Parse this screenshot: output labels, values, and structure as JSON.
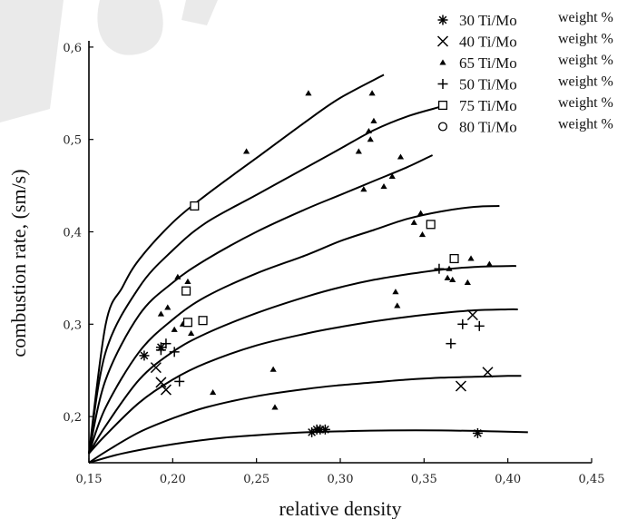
{
  "chart_data": {
    "type": "scatter",
    "title": "",
    "xlabel": "relative density",
    "ylabel": "combustion rate, (sm/s)",
    "xlim": [
      0.15,
      0.45
    ],
    "ylim": [
      0.15,
      0.65
    ],
    "x_ticks": [
      "0,15",
      "0,20",
      "0,25",
      "0,30",
      "0,35",
      "0,40",
      "0,45"
    ],
    "y_ticks": [
      "0,2",
      "0,3",
      "0,4",
      "0,5",
      "0,6"
    ],
    "x_tick_values": [
      0.15,
      0.2,
      0.25,
      0.3,
      0.35,
      0.4,
      0.45
    ],
    "y_tick_values": [
      0.2,
      0.3,
      0.4,
      0.5,
      0.6
    ],
    "grid": false,
    "legend_position": "top-right",
    "legend_unit": "weight %",
    "series": [
      {
        "name": "30 Ti/Mo",
        "marker": "asterisk",
        "x": [
          0.183,
          0.193,
          0.283,
          0.286,
          0.288,
          0.291,
          0.382
        ],
        "y": [
          0.266,
          0.275,
          0.183,
          0.186,
          0.186,
          0.186,
          0.182
        ]
      },
      {
        "name": "40 Ti/Mo",
        "marker": "x",
        "x": [
          0.19,
          0.193,
          0.196,
          0.372,
          0.379,
          0.388
        ],
        "y": [
          0.253,
          0.237,
          0.229,
          0.233,
          0.31,
          0.248
        ]
      },
      {
        "name": "65 Ti/Mo",
        "marker": "triangle",
        "x": [
          0.193,
          0.197,
          0.201,
          0.203,
          0.206,
          0.209,
          0.211,
          0.224,
          0.244,
          0.26,
          0.261,
          0.281,
          0.311,
          0.314,
          0.317,
          0.318,
          0.319,
          0.32,
          0.326,
          0.331,
          0.333,
          0.334,
          0.336,
          0.344,
          0.348,
          0.349,
          0.364,
          0.365,
          0.367,
          0.376,
          0.378,
          0.389
        ],
        "y": [
          0.311,
          0.318,
          0.294,
          0.351,
          0.3,
          0.346,
          0.29,
          0.226,
          0.487,
          0.251,
          0.21,
          0.55,
          0.487,
          0.446,
          0.509,
          0.5,
          0.55,
          0.52,
          0.449,
          0.46,
          0.335,
          0.32,
          0.481,
          0.41,
          0.42,
          0.397,
          0.35,
          0.36,
          0.348,
          0.345,
          0.371,
          0.365
        ]
      },
      {
        "name": "50 Ti/Mo",
        "marker": "plus",
        "x": [
          0.193,
          0.196,
          0.201,
          0.204,
          0.359,
          0.366,
          0.373,
          0.383
        ],
        "y": [
          0.272,
          0.279,
          0.27,
          0.238,
          0.36,
          0.279,
          0.3,
          0.298
        ]
      },
      {
        "name": "75 Ti/Mo",
        "marker": "square",
        "x": [
          0.208,
          0.209,
          0.213,
          0.218,
          0.354,
          0.368
        ],
        "y": [
          0.336,
          0.302,
          0.428,
          0.304,
          0.408,
          0.371
        ]
      },
      {
        "name": "80 Ti/Mo",
        "marker": "circle",
        "x": [],
        "y": []
      }
    ],
    "fitted_curves": [
      {
        "x": [
          0.15,
          0.16,
          0.17,
          0.18,
          0.2,
          0.22,
          0.25,
          0.28,
          0.3,
          0.326
        ],
        "y": [
          0.16,
          0.3,
          0.34,
          0.37,
          0.41,
          0.44,
          0.48,
          0.52,
          0.545,
          0.57
        ]
      },
      {
        "x": [
          0.15,
          0.16,
          0.18,
          0.2,
          0.22,
          0.25,
          0.28,
          0.3,
          0.32,
          0.34,
          0.359
        ],
        "y": [
          0.16,
          0.27,
          0.34,
          0.38,
          0.41,
          0.44,
          0.47,
          0.49,
          0.51,
          0.525,
          0.535
        ]
      },
      {
        "x": [
          0.15,
          0.16,
          0.18,
          0.2,
          0.22,
          0.25,
          0.28,
          0.3,
          0.32,
          0.34,
          0.355
        ],
        "y": [
          0.16,
          0.24,
          0.31,
          0.345,
          0.37,
          0.4,
          0.425,
          0.44,
          0.455,
          0.47,
          0.483
        ]
      },
      {
        "x": [
          0.15,
          0.16,
          0.18,
          0.2,
          0.22,
          0.25,
          0.28,
          0.3,
          0.32,
          0.34,
          0.36,
          0.38,
          0.395
        ],
        "y": [
          0.16,
          0.21,
          0.27,
          0.305,
          0.33,
          0.355,
          0.375,
          0.39,
          0.402,
          0.414,
          0.422,
          0.427,
          0.428
        ]
      },
      {
        "x": [
          0.15,
          0.16,
          0.18,
          0.2,
          0.22,
          0.25,
          0.28,
          0.3,
          0.32,
          0.34,
          0.36,
          0.38,
          0.4,
          0.405
        ],
        "y": [
          0.16,
          0.19,
          0.24,
          0.27,
          0.29,
          0.312,
          0.33,
          0.34,
          0.348,
          0.354,
          0.359,
          0.362,
          0.363,
          0.363
        ]
      },
      {
        "x": [
          0.15,
          0.16,
          0.18,
          0.2,
          0.22,
          0.25,
          0.28,
          0.3,
          0.32,
          0.34,
          0.36,
          0.38,
          0.4,
          0.406
        ],
        "y": [
          0.16,
          0.18,
          0.215,
          0.24,
          0.258,
          0.277,
          0.29,
          0.297,
          0.303,
          0.308,
          0.312,
          0.315,
          0.316,
          0.316
        ]
      },
      {
        "x": [
          0.15,
          0.16,
          0.18,
          0.2,
          0.22,
          0.25,
          0.28,
          0.3,
          0.32,
          0.34,
          0.36,
          0.38,
          0.4,
          0.408
        ],
        "y": [
          0.15,
          0.162,
          0.183,
          0.198,
          0.21,
          0.222,
          0.23,
          0.234,
          0.237,
          0.24,
          0.242,
          0.243,
          0.244,
          0.244
        ]
      },
      {
        "x": [
          0.15,
          0.17,
          0.2,
          0.23,
          0.26,
          0.28,
          0.3,
          0.33,
          0.36,
          0.39,
          0.412
        ],
        "y": [
          0.15,
          0.16,
          0.17,
          0.177,
          0.181,
          0.183,
          0.184,
          0.185,
          0.185,
          0.184,
          0.183
        ]
      }
    ]
  }
}
